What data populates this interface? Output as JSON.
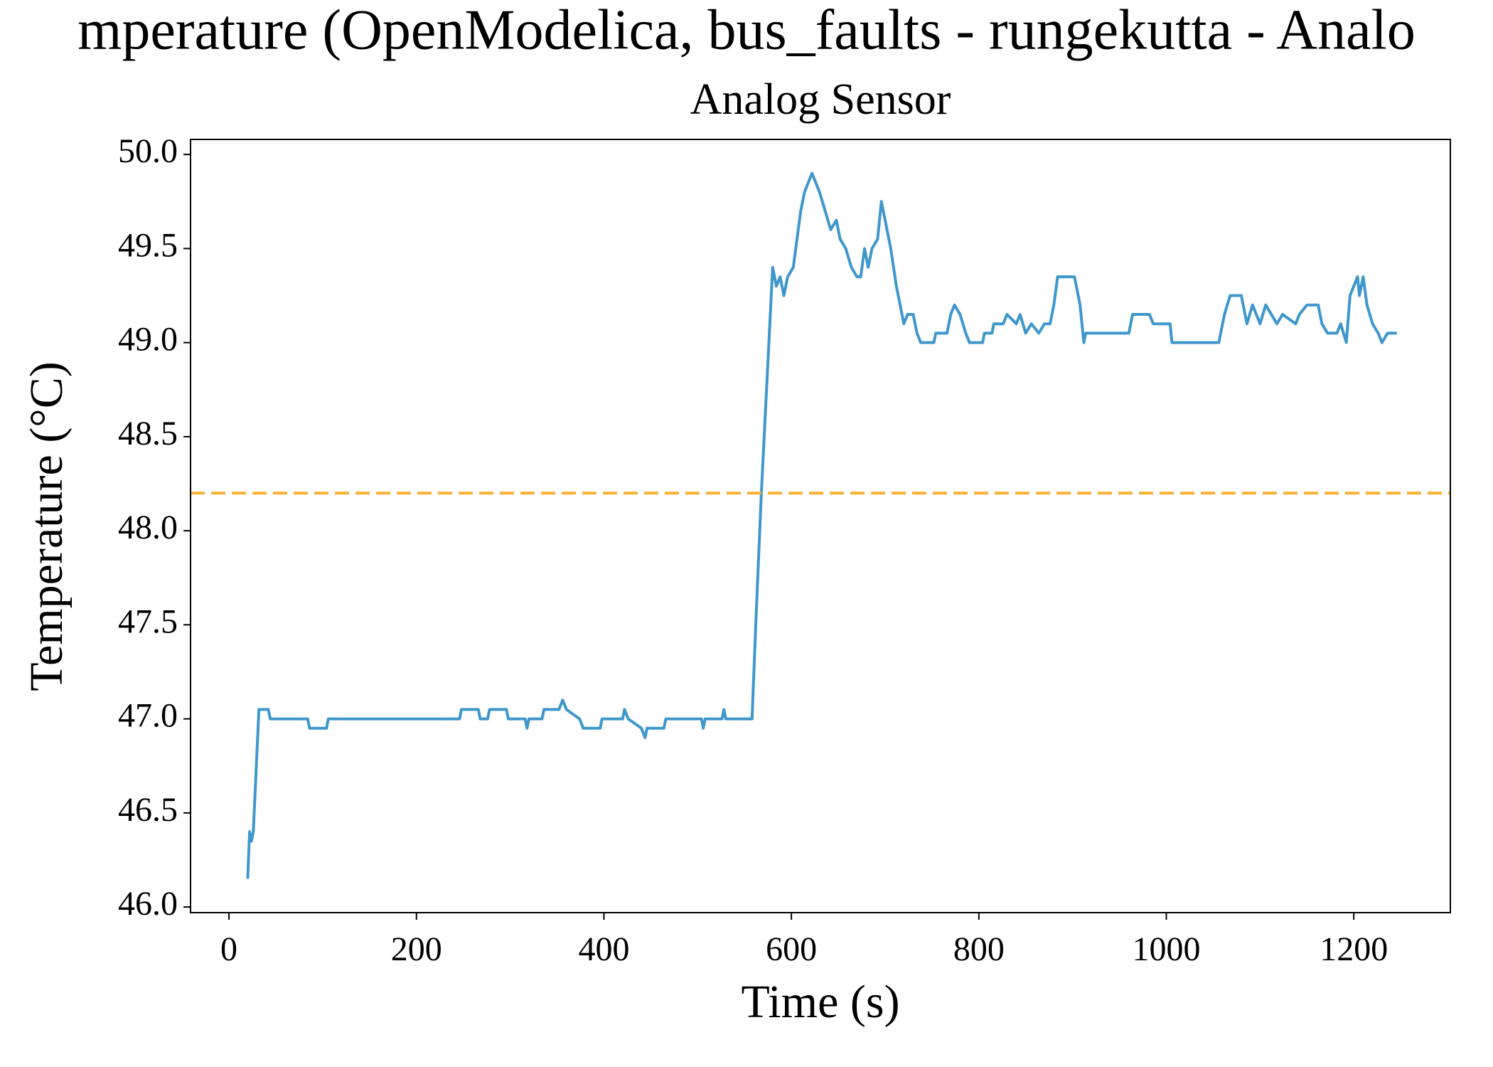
{
  "chart_data": {
    "type": "line",
    "title": "mperature (OpenModelica, bus_faults - rungekutta - Analo",
    "subtitle": "Analog Sensor",
    "xlabel": "Time (s)",
    "ylabel": "Temperature (°C)",
    "xlim": [
      -41,
      1303
    ],
    "ylim": [
      45.97,
      50.08
    ],
    "xticks": [
      0,
      200,
      400,
      600,
      800,
      1000,
      1200
    ],
    "yticks": [
      {
        "value": 46,
        "label": "46.0"
      },
      46.5,
      {
        "value": 47,
        "label": "47.0"
      },
      47.5,
      {
        "value": 48,
        "label": "48.0"
      },
      48.5,
      {
        "value": 49,
        "label": "49.0"
      },
      49.5,
      {
        "value": 50,
        "label": "50.0"
      }
    ],
    "threshold": {
      "value": 48.2,
      "color": "#fbb034"
    },
    "series": [
      {
        "color": "#3f97cb",
        "x": [
          20,
          22,
          24,
          26,
          32,
          42,
          44,
          84,
          86,
          104,
          106,
          246,
          248,
          266,
          268,
          276,
          278,
          296,
          298,
          316,
          318,
          320,
          334,
          336,
          352,
          356,
          360,
          374,
          378,
          396,
          398,
          420,
          422,
          426,
          440,
          444,
          446,
          464,
          466,
          504,
          506,
          508,
          526,
          528,
          530,
          558,
          562,
          568,
          576,
          580,
          584,
          588,
          592,
          596,
          602,
          606,
          610,
          614,
          618,
          622,
          626,
          630,
          636,
          642,
          648,
          652,
          658,
          664,
          670,
          674,
          678,
          682,
          686,
          692,
          696,
          700,
          706,
          712,
          716,
          720,
          724,
          730,
          734,
          738,
          752,
          754,
          766,
          770,
          774,
          780,
          786,
          790,
          804,
          806,
          814,
          816,
          826,
          830,
          840,
          844,
          850,
          856,
          864,
          870,
          876,
          880,
          884,
          902,
          908,
          912,
          914,
          960,
          964,
          982,
          986,
          1004,
          1006,
          1056,
          1062,
          1068,
          1080,
          1086,
          1092,
          1100,
          1106,
          1118,
          1124,
          1138,
          1142,
          1150,
          1162,
          1166,
          1172,
          1182,
          1186,
          1192,
          1196,
          1200,
          1204,
          1206,
          1210,
          1214,
          1220,
          1226,
          1230,
          1236,
          1246
        ],
        "values": [
          46.15,
          46.4,
          46.35,
          46.4,
          47.05,
          47.05,
          47.0,
          47.0,
          46.95,
          46.95,
          47.0,
          47.0,
          47.05,
          47.05,
          47.0,
          47.0,
          47.05,
          47.05,
          47.0,
          47.0,
          46.95,
          47.0,
          47.0,
          47.05,
          47.05,
          47.1,
          47.05,
          47.0,
          46.95,
          46.95,
          47.0,
          47.0,
          47.05,
          47.0,
          46.95,
          46.9,
          46.95,
          46.95,
          47.0,
          47.0,
          46.95,
          47.0,
          47.0,
          47.05,
          47.0,
          47.0,
          47.5,
          48.2,
          49.0,
          49.4,
          49.3,
          49.35,
          49.25,
          49.35,
          49.4,
          49.55,
          49.7,
          49.8,
          49.85,
          49.9,
          49.85,
          49.8,
          49.7,
          49.6,
          49.65,
          49.55,
          49.5,
          49.4,
          49.35,
          49.35,
          49.5,
          49.4,
          49.5,
          49.55,
          49.75,
          49.65,
          49.5,
          49.3,
          49.2,
          49.1,
          49.15,
          49.15,
          49.05,
          49.0,
          49.0,
          49.05,
          49.05,
          49.15,
          49.2,
          49.15,
          49.05,
          49.0,
          49.0,
          49.05,
          49.05,
          49.1,
          49.1,
          49.15,
          49.1,
          49.15,
          49.05,
          49.1,
          49.05,
          49.1,
          49.1,
          49.2,
          49.35,
          49.35,
          49.2,
          49.0,
          49.05,
          49.05,
          49.15,
          49.15,
          49.1,
          49.1,
          49.0,
          49.0,
          49.15,
          49.25,
          49.25,
          49.1,
          49.2,
          49.1,
          49.2,
          49.1,
          49.15,
          49.1,
          49.15,
          49.2,
          49.2,
          49.1,
          49.05,
          49.05,
          49.1,
          49.0,
          49.25,
          49.3,
          49.35,
          49.25,
          49.35,
          49.2,
          49.1,
          49.05,
          49.0,
          49.05,
          49.05
        ]
      }
    ]
  }
}
